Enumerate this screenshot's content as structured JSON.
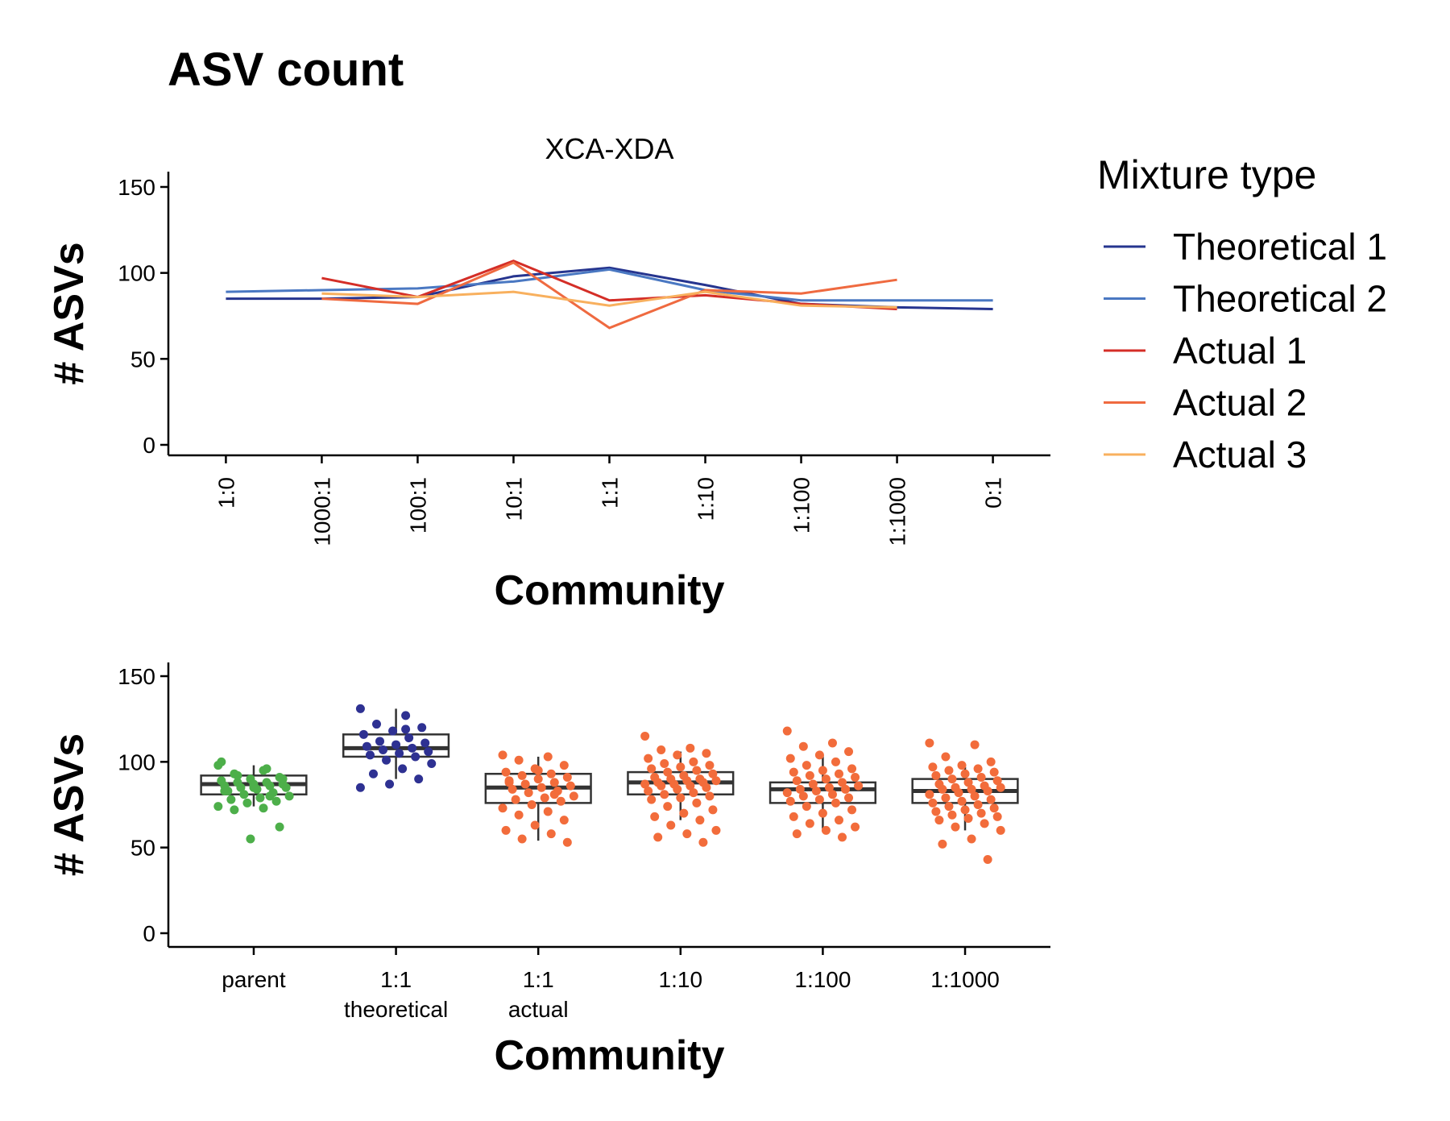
{
  "title": "ASV count",
  "chart_data": [
    {
      "type": "line",
      "subtitle": "XCA-XDA",
      "y_label": "# ASVs",
      "x_label": "Community",
      "categories": [
        "1:0",
        "1000:1",
        "100:1",
        "10:1",
        "1:1",
        "1:10",
        "1:100",
        "1:1000",
        "0:1"
      ],
      "ylim": [
        -6.1,
        158.9
      ],
      "yticks": [
        0,
        50,
        100,
        150
      ],
      "legend_title": "Mixture type",
      "legend": "right",
      "series": [
        {
          "name": "Theoretical 1",
          "color": "#26358f",
          "values": [
            85,
            85,
            86,
            98,
            103,
            93,
            82,
            80,
            79
          ]
        },
        {
          "name": "Theoretical 2",
          "color": "#4a78c2",
          "values": [
            89,
            90,
            91,
            95,
            102,
            90,
            84,
            84,
            84
          ]
        },
        {
          "name": "Actual 1",
          "color": "#d42e27",
          "values": [
            null,
            97,
            86,
            107,
            84,
            87,
            82,
            79,
            null
          ]
        },
        {
          "name": "Actual 2",
          "color": "#ef6a40",
          "values": [
            null,
            85,
            82,
            106,
            68,
            90,
            88,
            96,
            null
          ]
        },
        {
          "name": "Actual 3",
          "color": "#f8b05e",
          "values": [
            null,
            88,
            86,
            89,
            81,
            89,
            81,
            80,
            null
          ]
        }
      ]
    },
    {
      "type": "box",
      "y_label": "# ASVs",
      "x_label": "Community",
      "categories": [
        [
          "parent"
        ],
        [
          "1:1",
          "theoretical"
        ],
        [
          "1:1",
          "actual"
        ],
        [
          "1:10"
        ],
        [
          "1:100"
        ],
        [
          "1:1000"
        ]
      ],
      "ylim": [
        -8,
        158
      ],
      "yticks": [
        0,
        50,
        100,
        150
      ],
      "colors": [
        "#4daf4a",
        "#2e3192",
        "#f26c3b",
        "#f26c3b",
        "#f26c3b",
        "#f26c3b"
      ],
      "boxes": [
        {
          "low": 74,
          "q1": 81,
          "median": 87,
          "q3": 92,
          "high": 98
        },
        {
          "low": 90,
          "q1": 103,
          "median": 108,
          "q3": 116,
          "high": 131
        },
        {
          "low": 54,
          "q1": 76,
          "median": 85,
          "q3": 93,
          "high": 103
        },
        {
          "low": 66,
          "q1": 81,
          "median": 88,
          "q3": 94,
          "high": 106
        },
        {
          "low": 61,
          "q1": 76,
          "median": 84,
          "q3": 88,
          "high": 104
        },
        {
          "low": 60,
          "q1": 76,
          "median": 83,
          "q3": 90,
          "high": 97
        }
      ],
      "points": [
        [
          98,
          95,
          93,
          91,
          90,
          89,
          88,
          88,
          87,
          87,
          86,
          86,
          85,
          85,
          84,
          83,
          82,
          81,
          80,
          79,
          78,
          77,
          76,
          74,
          73,
          72,
          62,
          55,
          100,
          96,
          92,
          90,
          85,
          83,
          80
        ],
        [
          131,
          127,
          122,
          120,
          118,
          116,
          114,
          112,
          111,
          110,
          109,
          108,
          107,
          106,
          105,
          104,
          103,
          101,
          99,
          96,
          93,
          90,
          87,
          85,
          119
        ],
        [
          104,
          103,
          101,
          98,
          96,
          94,
          93,
          92,
          91,
          90,
          89,
          88,
          87,
          86,
          85,
          84,
          83,
          82,
          80,
          79,
          78,
          77,
          75,
          73,
          71,
          69,
          66,
          63,
          60,
          58,
          55,
          53,
          95,
          88,
          81
        ],
        [
          115,
          108,
          107,
          105,
          104,
          102,
          100,
          99,
          98,
          97,
          96,
          95,
          94,
          93,
          92,
          91,
          90,
          90,
          89,
          89,
          88,
          88,
          87,
          87,
          86,
          86,
          85,
          84,
          83,
          82,
          81,
          80,
          79,
          78,
          76,
          74,
          72,
          70,
          68,
          66,
          63,
          60,
          58,
          56,
          53
        ],
        [
          118,
          111,
          109,
          106,
          104,
          102,
          100,
          98,
          96,
          95,
          94,
          93,
          92,
          91,
          90,
          89,
          88,
          87,
          86,
          85,
          84,
          84,
          83,
          82,
          81,
          80,
          79,
          78,
          77,
          76,
          74,
          72,
          70,
          68,
          66,
          64,
          62,
          60,
          58,
          56
        ],
        [
          111,
          110,
          103,
          100,
          98,
          97,
          96,
          95,
          94,
          93,
          92,
          91,
          90,
          89,
          88,
          87,
          86,
          85,
          85,
          84,
          84,
          83,
          82,
          81,
          80,
          79,
          78,
          77,
          76,
          75,
          74,
          73,
          72,
          71,
          70,
          69,
          68,
          67,
          66,
          64,
          62,
          60,
          55,
          52,
          43
        ]
      ]
    }
  ]
}
